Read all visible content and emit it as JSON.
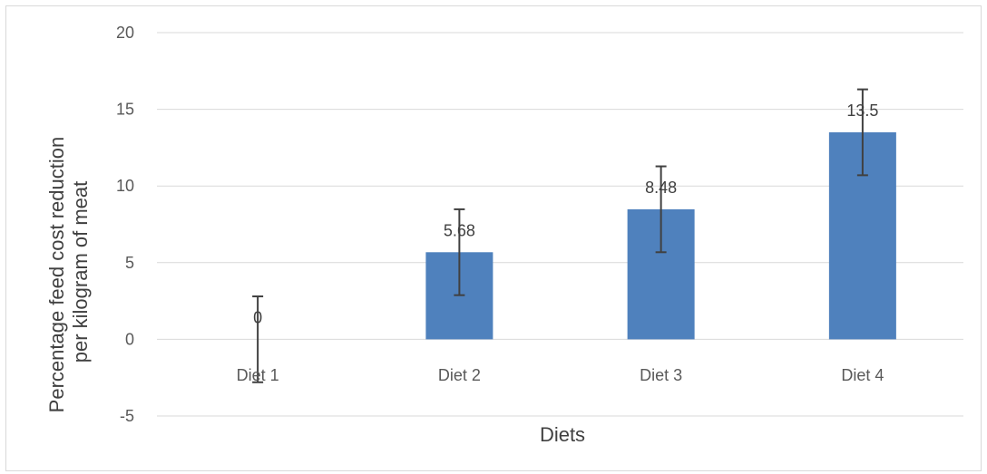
{
  "chart_data": {
    "type": "bar",
    "categories": [
      "Diet 1",
      "Diet 2",
      "Diet 3",
      "Diet 4"
    ],
    "values": [
      0,
      5.68,
      8.48,
      13.5
    ],
    "data_labels": [
      "0",
      "5.68",
      "8.48",
      "13.5"
    ],
    "error_bars": [
      2.8,
      2.8,
      2.8,
      2.8
    ],
    "xlabel": "Diets",
    "ylabel_lines": [
      "Percentage feed cost reduction",
      "per kilogram of meat"
    ],
    "ylim": [
      -5,
      20
    ],
    "yticks": [
      -5,
      0,
      5,
      10,
      15,
      20
    ],
    "grid": true,
    "colors": {
      "bar": "#4f81bd",
      "grid": "#d9d9d9",
      "error_bar": "#404040"
    }
  }
}
